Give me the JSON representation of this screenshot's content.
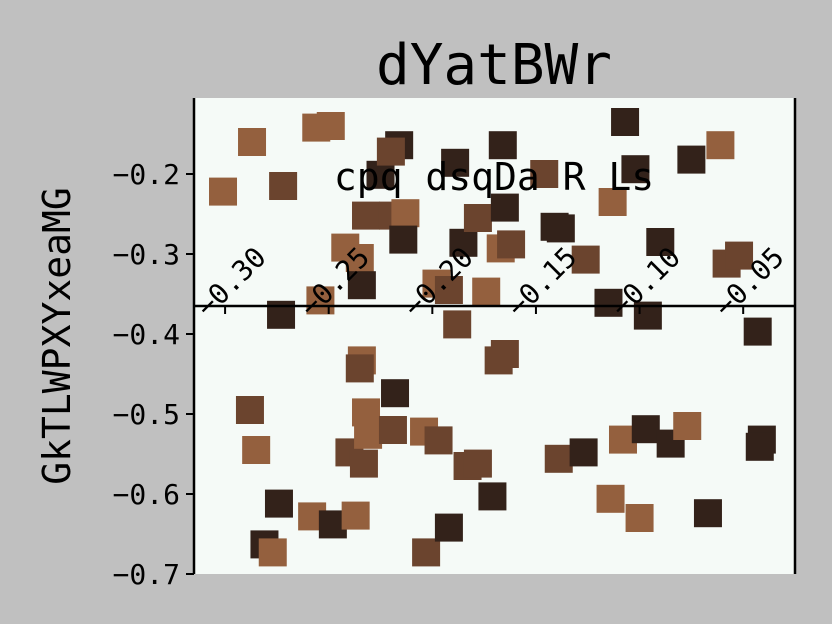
{
  "chart_data": {
    "type": "scatter",
    "title": "dYatBWr",
    "xlabel": "cpq dsqDa R Ls",
    "ylabel": "GkTLWPXYxeaMG",
    "xlim": [
      -0.315,
      -0.025
    ],
    "ylim": [
      -0.7,
      -0.105
    ],
    "x_ticks": [
      -0.3,
      -0.25,
      -0.2,
      -0.15,
      -0.1,
      -0.05
    ],
    "x_tick_labels": [
      "−0.30",
      "−0.25",
      "−0.20",
      "−0.15",
      "−0.10",
      "−0.05"
    ],
    "y_ticks": [
      -0.2,
      -0.3,
      -0.4,
      -0.5,
      -0.6,
      -0.7
    ],
    "y_tick_labels": [
      "−0.2",
      "−0.3",
      "−0.4",
      "−0.5",
      "−0.6",
      "−0.7"
    ],
    "x_axis_at_y": -0.365,
    "x_axis_position": "inside plot, labels above",
    "grid": false,
    "legend": "none",
    "colors": {
      "background": "#c0c0c0",
      "plot_background": "#f5faf7",
      "marker_dark": "#33221a",
      "marker_mid": "#6b442e",
      "marker_light": "#94603e"
    },
    "points": [
      {
        "x": -0.301,
        "y": -0.222,
        "c": "marker_light"
      },
      {
        "x": -0.287,
        "y": -0.16,
        "c": "marker_light"
      },
      {
        "x": -0.272,
        "y": -0.215,
        "c": "marker_mid"
      },
      {
        "x": -0.256,
        "y": -0.142,
        "c": "marker_light"
      },
      {
        "x": -0.249,
        "y": -0.14,
        "c": "marker_light"
      },
      {
        "x": -0.254,
        "y": -0.358,
        "c": "marker_light"
      },
      {
        "x": -0.273,
        "y": -0.376,
        "c": "marker_dark"
      },
      {
        "x": -0.242,
        "y": -0.292,
        "c": "marker_light"
      },
      {
        "x": -0.235,
        "y": -0.305,
        "c": "marker_light"
      },
      {
        "x": -0.234,
        "y": -0.339,
        "c": "marker_dark"
      },
      {
        "x": -0.232,
        "y": -0.252,
        "c": "marker_mid"
      },
      {
        "x": -0.225,
        "y": -0.201,
        "c": "marker_dark"
      },
      {
        "x": -0.216,
        "y": -0.164,
        "c": "marker_dark"
      },
      {
        "x": -0.22,
        "y": -0.172,
        "c": "marker_mid"
      },
      {
        "x": -0.219,
        "y": -0.252,
        "c": "marker_mid"
      },
      {
        "x": -0.213,
        "y": -0.249,
        "c": "marker_light"
      },
      {
        "x": -0.214,
        "y": -0.282,
        "c": "marker_dark"
      },
      {
        "x": -0.198,
        "y": -0.337,
        "c": "marker_light"
      },
      {
        "x": -0.192,
        "y": -0.345,
        "c": "marker_mid"
      },
      {
        "x": -0.189,
        "y": -0.186,
        "c": "marker_dark"
      },
      {
        "x": -0.188,
        "y": -0.388,
        "c": "marker_mid"
      },
      {
        "x": -0.185,
        "y": -0.286,
        "c": "marker_dark"
      },
      {
        "x": -0.178,
        "y": -0.255,
        "c": "marker_mid"
      },
      {
        "x": -0.174,
        "y": -0.347,
        "c": "marker_light"
      },
      {
        "x": -0.166,
        "y": -0.164,
        "c": "marker_dark"
      },
      {
        "x": -0.165,
        "y": -0.242,
        "c": "marker_dark"
      },
      {
        "x": -0.167,
        "y": -0.293,
        "c": "marker_light"
      },
      {
        "x": -0.162,
        "y": -0.288,
        "c": "marker_mid"
      },
      {
        "x": -0.146,
        "y": -0.2,
        "c": "marker_mid"
      },
      {
        "x": -0.141,
        "y": -0.266,
        "c": "marker_dark"
      },
      {
        "x": -0.138,
        "y": -0.268,
        "c": "marker_dark"
      },
      {
        "x": -0.126,
        "y": -0.307,
        "c": "marker_mid"
      },
      {
        "x": -0.113,
        "y": -0.235,
        "c": "marker_light"
      },
      {
        "x": -0.115,
        "y": -0.361,
        "c": "marker_dark"
      },
      {
        "x": -0.107,
        "y": -0.135,
        "c": "marker_dark"
      },
      {
        "x": -0.102,
        "y": -0.194,
        "c": "marker_dark"
      },
      {
        "x": -0.096,
        "y": -0.377,
        "c": "marker_dark"
      },
      {
        "x": -0.09,
        "y": -0.285,
        "c": "marker_dark"
      },
      {
        "x": -0.075,
        "y": -0.182,
        "c": "marker_dark"
      },
      {
        "x": -0.061,
        "y": -0.164,
        "c": "marker_light"
      },
      {
        "x": -0.058,
        "y": -0.312,
        "c": "marker_mid"
      },
      {
        "x": -0.052,
        "y": -0.302,
        "c": "marker_mid"
      },
      {
        "x": -0.043,
        "y": -0.397,
        "c": "marker_dark"
      },
      {
        "x": -0.288,
        "y": -0.495,
        "c": "marker_mid"
      },
      {
        "x": -0.285,
        "y": -0.545,
        "c": "marker_light"
      },
      {
        "x": -0.281,
        "y": -0.663,
        "c": "marker_dark"
      },
      {
        "x": -0.277,
        "y": -0.673,
        "c": "marker_light"
      },
      {
        "x": -0.274,
        "y": -0.612,
        "c": "marker_dark"
      },
      {
        "x": -0.258,
        "y": -0.628,
        "c": "marker_light"
      },
      {
        "x": -0.248,
        "y": -0.638,
        "c": "marker_dark"
      },
      {
        "x": -0.24,
        "y": -0.548,
        "c": "marker_mid"
      },
      {
        "x": -0.237,
        "y": -0.627,
        "c": "marker_light"
      },
      {
        "x": -0.234,
        "y": -0.433,
        "c": "marker_light"
      },
      {
        "x": -0.235,
        "y": -0.443,
        "c": "marker_mid"
      },
      {
        "x": -0.232,
        "y": -0.498,
        "c": "marker_light"
      },
      {
        "x": -0.231,
        "y": -0.526,
        "c": "marker_light"
      },
      {
        "x": -0.233,
        "y": -0.562,
        "c": "marker_mid"
      },
      {
        "x": -0.218,
        "y": -0.474,
        "c": "marker_dark"
      },
      {
        "x": -0.219,
        "y": -0.52,
        "c": "marker_mid"
      },
      {
        "x": -0.204,
        "y": -0.522,
        "c": "marker_light"
      },
      {
        "x": -0.197,
        "y": -0.533,
        "c": "marker_mid"
      },
      {
        "x": -0.203,
        "y": -0.673,
        "c": "marker_mid"
      },
      {
        "x": -0.192,
        "y": -0.642,
        "c": "marker_dark"
      },
      {
        "x": -0.183,
        "y": -0.565,
        "c": "marker_mid"
      },
      {
        "x": -0.178,
        "y": -0.562,
        "c": "marker_mid"
      },
      {
        "x": -0.168,
        "y": -0.433,
        "c": "marker_mid"
      },
      {
        "x": -0.165,
        "y": -0.425,
        "c": "marker_mid"
      },
      {
        "x": -0.171,
        "y": -0.603,
        "c": "marker_dark"
      },
      {
        "x": -0.139,
        "y": -0.556,
        "c": "marker_mid"
      },
      {
        "x": -0.127,
        "y": -0.548,
        "c": "marker_dark"
      },
      {
        "x": -0.114,
        "y": -0.606,
        "c": "marker_light"
      },
      {
        "x": -0.108,
        "y": -0.532,
        "c": "marker_light"
      },
      {
        "x": -0.097,
        "y": -0.519,
        "c": "marker_dark"
      },
      {
        "x": -0.1,
        "y": -0.63,
        "c": "marker_light"
      },
      {
        "x": -0.085,
        "y": -0.537,
        "c": "marker_dark"
      },
      {
        "x": -0.077,
        "y": -0.515,
        "c": "marker_light"
      },
      {
        "x": -0.067,
        "y": -0.624,
        "c": "marker_dark"
      },
      {
        "x": -0.041,
        "y": -0.532,
        "c": "marker_dark"
      },
      {
        "x": -0.042,
        "y": -0.541,
        "c": "marker_dark"
      }
    ]
  }
}
